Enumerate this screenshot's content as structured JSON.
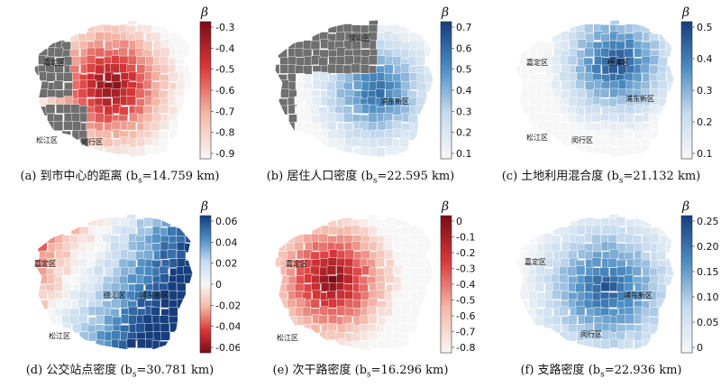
{
  "figure": {
    "legend_symbol": "β",
    "panels": [
      {
        "id": "a",
        "caption": "(a) 到市中心的距离 (b",
        "sub": "s",
        "caption_tail": "=14.759 km)",
        "colormap": "reds_diverging_neg",
        "ticks": [
          "-0.3",
          "-0.4",
          "-0.5",
          "-0.6",
          "-0.7",
          "-0.8",
          "-0.9"
        ],
        "district_labels": [
          "嘉定区",
          "松江区",
          "闵行区"
        ]
      },
      {
        "id": "b",
        "caption": "(b) 居住人口密度 (b",
        "sub": "s",
        "caption_tail": "=22.595 km)",
        "colormap": "blues",
        "ticks": [
          "0.7",
          "0.6",
          "0.5",
          "0.4",
          "0.3",
          "0.2",
          "0.1"
        ],
        "district_labels": [
          "宝山区",
          "浦东新区"
        ]
      },
      {
        "id": "c",
        "caption": "(c) 土地利用混合度 (b",
        "sub": "s",
        "caption_tail": "=21.132 km)",
        "colormap": "blues",
        "ticks": [
          "0.5",
          "0.4",
          "0.3",
          "0.2",
          "0.1"
        ],
        "district_labels": [
          "嘉定区",
          "杨浦区",
          "浦东新区",
          "松江区",
          "闵行区"
        ]
      },
      {
        "id": "d",
        "caption": "(d) 公交站点密度 (b",
        "sub": "s",
        "caption_tail": "=30.781 km)",
        "colormap": "diverging",
        "ticks": [
          "0.06",
          "0.04",
          "0.02",
          "0",
          "-0.02",
          "-0.04",
          "-0.06"
        ],
        "district_labels": [
          "嘉定区",
          "徐汇区",
          "浦东新区",
          "松江区"
        ]
      },
      {
        "id": "e",
        "caption": "(e) 次干路密度 (b",
        "sub": "s",
        "caption_tail": "=16.296 km)",
        "colormap": "reds",
        "ticks": [
          "0",
          "-0.1",
          "-0.2",
          "-0.3",
          "-0.4",
          "-0.5",
          "-0.6",
          "-0.7",
          "-0.8"
        ],
        "district_labels": [
          "嘉定区",
          "松江区"
        ]
      },
      {
        "id": "f",
        "caption": "(f) 支路密度 (b",
        "sub": "s",
        "caption_tail": "=22.936 km)",
        "colormap": "blues",
        "ticks": [
          "0.25",
          "0.20",
          "0.15",
          "0.10",
          "0.05",
          "0"
        ],
        "district_labels": [
          "嘉定区",
          "浦东新区",
          "闵行区"
        ]
      }
    ]
  },
  "colors": {
    "gray": "#6f6f6f",
    "dark_red": "#7a0b16",
    "red": "#d9383a",
    "light_red": "#f4b7a8",
    "white": "#f7f7f7",
    "light_blue": "#c6dbef",
    "blue": "#4a8cc2",
    "dark_blue": "#163d7e",
    "stroke": "#ffffff",
    "outline": "#333333"
  }
}
